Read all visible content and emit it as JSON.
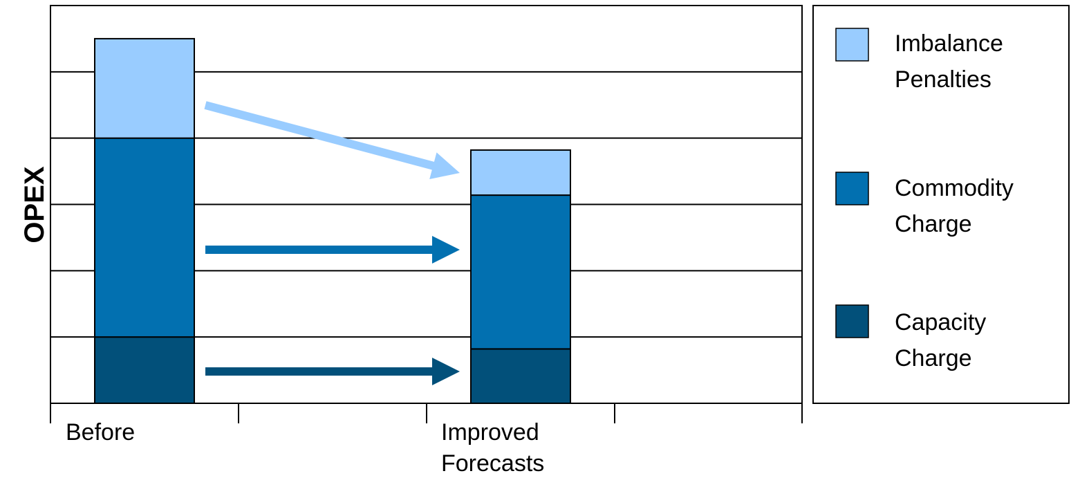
{
  "chart_data": {
    "type": "bar",
    "stacked": true,
    "title": "",
    "xlabel": "",
    "ylabel": "OPEX",
    "categories": [
      "Before",
      "Improved Forecasts"
    ],
    "series": [
      {
        "name": "Capacity Charge",
        "values": [
          1.0,
          0.82
        ],
        "color": "#02507A"
      },
      {
        "name": "Commodity Charge",
        "values": [
          3.0,
          2.32
        ],
        "color": "#0270B0"
      },
      {
        "name": "Imbalance Penalties",
        "values": [
          1.5,
          0.68
        ],
        "color": "#99CCFF"
      }
    ],
    "ylim": [
      0,
      6
    ],
    "grid": true,
    "legend": "right",
    "tick_labels_shown": false,
    "annotations": [
      {
        "type": "arrow",
        "series": "Imbalance Penalties",
        "from": "Before",
        "to": "Improved Forecasts"
      },
      {
        "type": "arrow",
        "series": "Commodity Charge",
        "from": "Before",
        "to": "Improved Forecasts"
      },
      {
        "type": "arrow",
        "series": "Capacity Charge",
        "from": "Before",
        "to": "Improved Forecasts"
      }
    ]
  },
  "legend": {
    "items": [
      {
        "label_line1": "Imbalance",
        "label_line2": "Penalties",
        "color": "#99CCFF"
      },
      {
        "label_line1": "Commodity",
        "label_line2": "Charge",
        "color": "#0270B0"
      },
      {
        "label_line1": "Capacity",
        "label_line2": "Charge",
        "color": "#02507A"
      }
    ]
  },
  "x_labels": {
    "before": "Before",
    "improved_line1": "Improved",
    "improved_line2": "Forecasts"
  }
}
